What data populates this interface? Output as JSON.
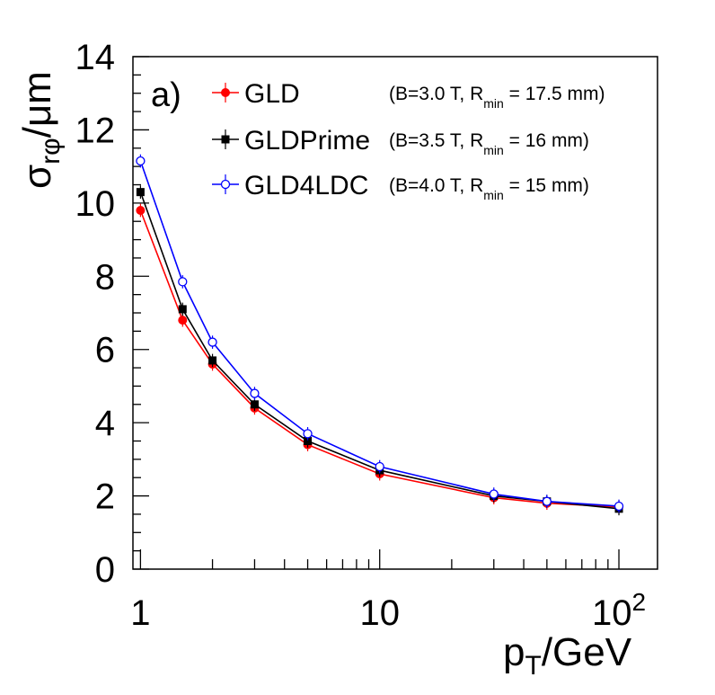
{
  "chart_data": {
    "type": "line",
    "panel_label": "a)",
    "xlabel": {
      "main": "p",
      "sub": "T",
      "unit": "/GeV"
    },
    "ylabel": {
      "main": "σ",
      "sub": "rφ",
      "unit": "/μm"
    },
    "x_scale": "log",
    "xlim": [
      0.93,
      145
    ],
    "ylim": [
      0,
      14
    ],
    "y_ticks": [
      0,
      2,
      4,
      6,
      8,
      10,
      12,
      14
    ],
    "x_ticks": [
      {
        "value": 1,
        "label": "1"
      },
      {
        "value": 10,
        "label": "10"
      },
      {
        "value": 100,
        "label": "10",
        "sup": "2"
      }
    ],
    "grid": false,
    "legend_position": "top",
    "x": [
      1,
      1.5,
      2,
      3,
      5,
      10,
      30,
      50,
      100
    ],
    "series": [
      {
        "name": "GLD",
        "condition": {
          "prefix": "(B=3.0 T, R",
          "sub": "min",
          "suffix": "= 17.5 mm)"
        },
        "color": "#ff0000",
        "marker": "filled-circle",
        "values": [
          9.8,
          6.8,
          5.6,
          4.4,
          3.4,
          2.6,
          1.95,
          1.8,
          1.7
        ]
      },
      {
        "name": "GLDPrime",
        "condition": {
          "prefix": "(B=3.5 T, R",
          "sub": "min",
          "suffix": "= 16 mm)"
        },
        "color": "#000000",
        "marker": "filled-square",
        "values": [
          10.3,
          7.1,
          5.7,
          4.5,
          3.5,
          2.7,
          2.0,
          1.85,
          1.65
        ]
      },
      {
        "name": "GLD4LDC",
        "condition": {
          "prefix": "(B=4.0 T, R",
          "sub": "min",
          "suffix": "= 15 mm)"
        },
        "color": "#0000ff",
        "marker": "open-circle",
        "values": [
          11.15,
          7.85,
          6.2,
          4.8,
          3.7,
          2.8,
          2.05,
          1.85,
          1.72
        ]
      }
    ]
  }
}
